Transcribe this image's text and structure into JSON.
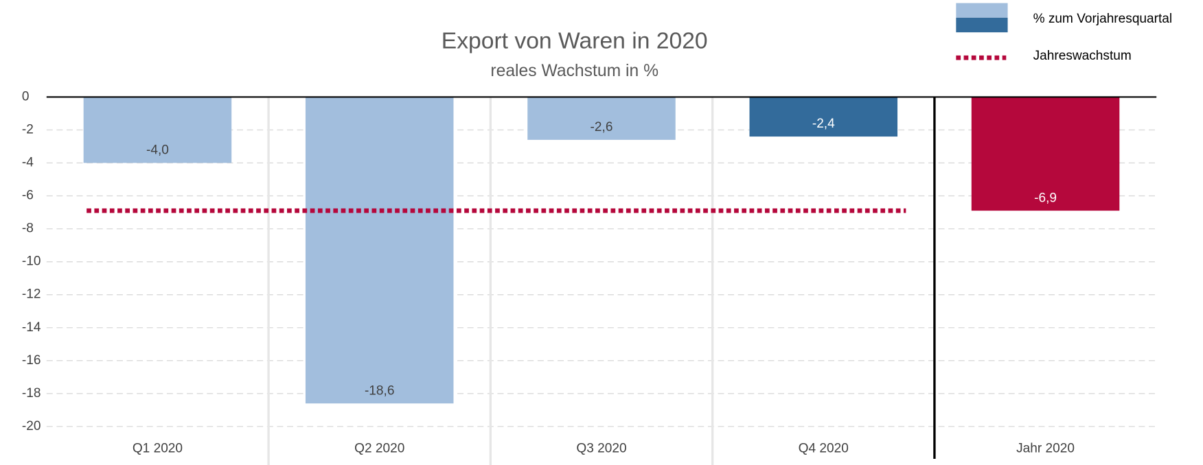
{
  "chart_data": {
    "type": "bar",
    "title": "Export von Waren in 2020",
    "subtitle": "reales Wachstum in %",
    "categories": [
      "Q1 2020",
      "Q2 2020",
      "Q3 2020",
      "Q4 2020",
      "Jahr 2020"
    ],
    "values": [
      -4.0,
      -18.6,
      -2.6,
      -2.4,
      -6.9
    ],
    "value_labels": [
      "-4,0",
      "-18,6",
      "-2,6",
      "-2,4",
      "-6,9"
    ],
    "colors": [
      "#a2bedd",
      "#a2bedd",
      "#a2bedd",
      "#336b9b",
      "#b5083c"
    ],
    "ylim": [
      -20,
      0
    ],
    "yticks": [
      0,
      -2,
      -4,
      -6,
      -8,
      -10,
      -12,
      -14,
      -16,
      -18,
      -20
    ],
    "grid": true,
    "legend_position": "top-right",
    "legend": [
      {
        "label": "% zum Vorjahresquartal",
        "colors": [
          "#a2bedd",
          "#336b9b"
        ]
      },
      {
        "label": "Jahreswachstum",
        "color": "#b5083c",
        "style": "dotted"
      }
    ]
  }
}
